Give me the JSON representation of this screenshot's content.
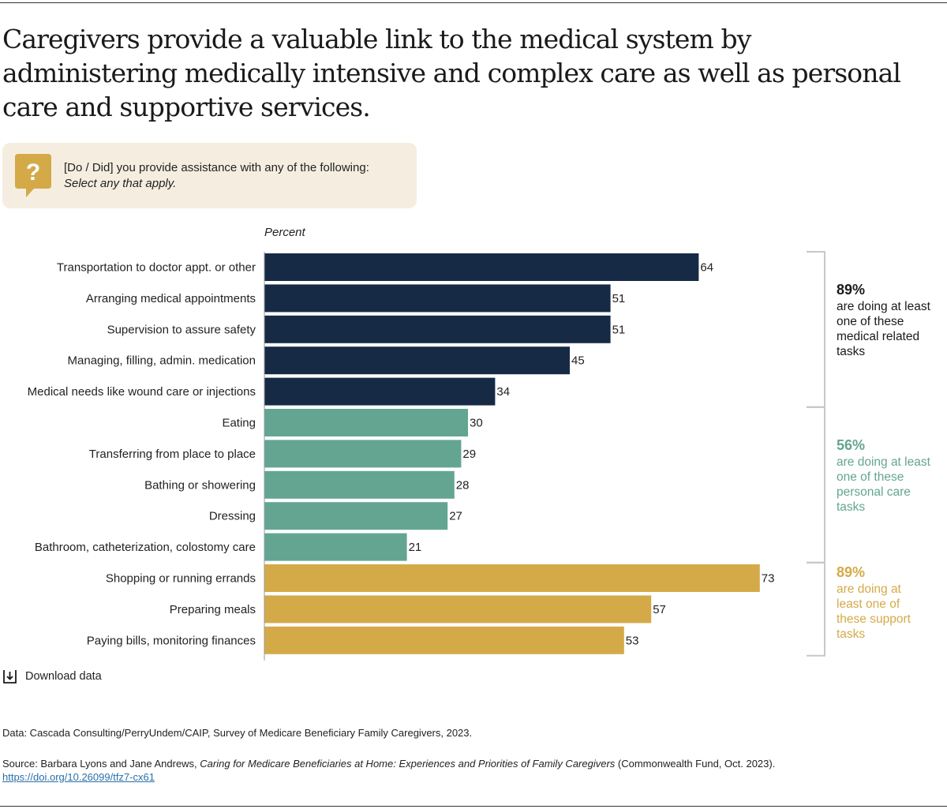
{
  "title": "Caregivers provide a valuable link to the medical system by administering medically intensive and complex care as well as personal care and supportive services.",
  "question": {
    "icon": "question-mark-speech-bubble-icon",
    "line1": "[Do / Did] you provide assistance with any of the following:",
    "line2": "Select any that apply."
  },
  "colors": {
    "medical": "#172a45",
    "personal": "#64a592",
    "support": "#d4aa49",
    "bracket": "#c8c8c8",
    "axis": "#999999"
  },
  "chart_data": {
    "type": "bar",
    "orientation": "horizontal",
    "xlabel": "Percent",
    "xlim": [
      0,
      100
    ],
    "grid": false,
    "categories": [
      "Transportation to doctor appt. or other",
      "Arranging medical appointments",
      "Supervision to assure safety",
      "Managing, filling, admin. medication",
      "Medical needs like wound care or injections",
      "Eating",
      "Transferring from place to place",
      "Bathing or showering",
      "Dressing",
      "Bathroom, catheterization, colostomy care",
      "Shopping or running errands",
      "Preparing meals",
      "Paying bills, monitoring finances"
    ],
    "values": [
      64,
      51,
      51,
      45,
      34,
      30,
      29,
      28,
      27,
      21,
      73,
      57,
      53
    ],
    "groups": [
      "medical",
      "medical",
      "medical",
      "medical",
      "medical",
      "personal",
      "personal",
      "personal",
      "personal",
      "personal",
      "support",
      "support",
      "support"
    ],
    "group_notes": [
      {
        "key": "medical",
        "percent": "89%",
        "text": "are doing at least one of these medical related tasks"
      },
      {
        "key": "personal",
        "percent": "56%",
        "text": "are doing at least one of these personal care tasks"
      },
      {
        "key": "support",
        "percent": "89%",
        "text": "are doing at least one of these support tasks"
      }
    ]
  },
  "download_label": "Download data",
  "data_note": "Data: Cascada Consulting/PerryUndem/CAIP, Survey of Medicare Beneficiary Family Caregivers, 2023.",
  "source": {
    "prefix": "Source: Barbara Lyons and Jane Andrews, ",
    "title": "Caring for Medicare Beneficiaries at Home: Experiences and Priorities of Family Caregivers",
    "suffix": " (Commonwealth Fund, Oct. 2023).",
    "link": "https://doi.org/10.26099/tfz7-cx61"
  }
}
